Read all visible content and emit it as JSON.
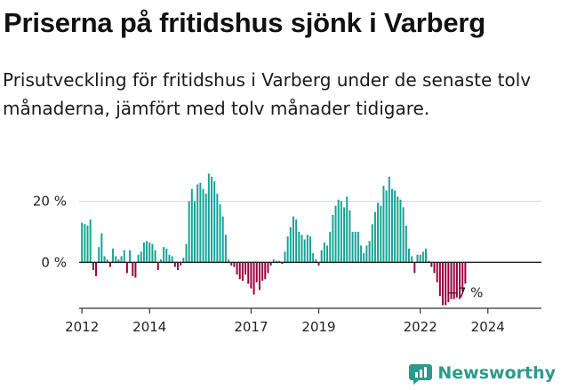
{
  "header": {
    "title": "Priserna på fritidshus sjönk i Varberg",
    "subtitle": "Prisutveckling för fritidshus i Varberg under de senaste tolv månaderna, jämfört med tolv månader tidigare."
  },
  "brand": {
    "name": "Newsworthy",
    "icon": "newsworthy-logo-icon",
    "color": "#2c9a8c"
  },
  "chart_data": {
    "type": "bar",
    "title": "",
    "xlabel": "",
    "ylabel": "",
    "x_start": "2011-12",
    "x_end": "2025-08",
    "x_ticks": [
      {
        "date": "2012-01",
        "label": "2012"
      },
      {
        "date": "2014-01",
        "label": "2014"
      },
      {
        "date": "2017-01",
        "label": "2017"
      },
      {
        "date": "2019-01",
        "label": "2019"
      },
      {
        "date": "2022-01",
        "label": "2022"
      },
      {
        "date": "2024-01",
        "label": "2024"
      }
    ],
    "ylim": [
      -15,
      30
    ],
    "y_ticks": [
      {
        "value": 20,
        "label": "20 %"
      },
      {
        "value": 0,
        "label": "0 %"
      }
    ],
    "grid": "horizontal",
    "colors": {
      "positive": "#14a394",
      "negative": "#99003f",
      "zero_line": "#222222",
      "grid": "#d9d9d9"
    },
    "end_label": "−7 %",
    "series": [
      {
        "start": "2012-01",
        "values": [
          13,
          12.5,
          12,
          14,
          -2.5,
          -4.5,
          5,
          9.5,
          2,
          1,
          -1.5,
          4.5,
          2,
          1,
          2,
          4,
          -3.5,
          4,
          -4.5,
          -5,
          2.5,
          3.5,
          6.5,
          7,
          6.5,
          6,
          4,
          -2.5,
          1,
          5,
          4.5,
          2.5,
          2,
          -1.5,
          -2.5,
          -1,
          1.5,
          6,
          20,
          24,
          20,
          25.5,
          26,
          24,
          22.5,
          29,
          28,
          26.5,
          22.5,
          19,
          15,
          9,
          1,
          -1,
          -1.5,
          -4,
          -5.5,
          -6,
          -4,
          -7,
          -8.5,
          -10.5,
          -6.5,
          -9,
          -6,
          -5.5,
          -3.5,
          -1,
          1,
          0.5,
          0.5,
          -0.5,
          3.5,
          8.5,
          11.5,
          15,
          14,
          10,
          9,
          7.5,
          9,
          8.5,
          3,
          1,
          -1,
          4,
          6.5,
          5.5,
          10,
          15.5,
          18.5,
          20.5,
          20,
          18,
          21.5,
          17,
          10,
          10,
          10,
          5.5,
          3,
          5.5,
          7,
          12.5,
          16.5,
          19.5,
          18.5,
          25,
          23.5,
          28,
          24,
          23.5,
          21.5,
          20.5,
          18,
          12,
          4.5,
          2,
          -3.5,
          2.5,
          2.5,
          3.5,
          4.5,
          0.5,
          -1.5,
          -3.5,
          -6.5,
          -11,
          -14,
          -14,
          -13,
          -12,
          -12,
          -11.5,
          -12,
          -9.5,
          -7
        ]
      }
    ]
  }
}
